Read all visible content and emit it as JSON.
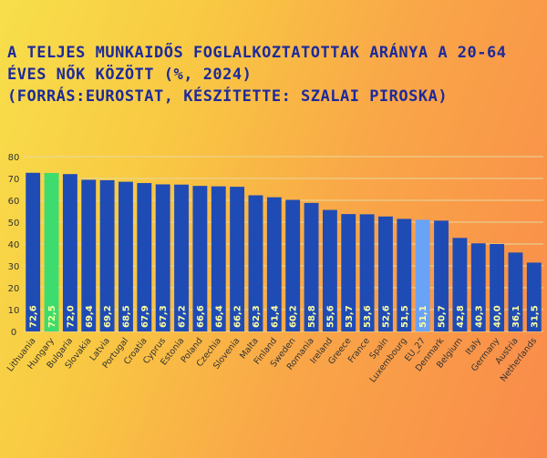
{
  "title_lines": [
    "A teljes munkaidős foglalkoztatottak aránya a 20-64",
    "éves nők között (%, 2024)",
    "(Forrás:Eurostat, készítette: Szalai Piroska)"
  ],
  "colors": {
    "bar": "#1f4bb5",
    "highlight": "#3ddc6e",
    "eu": "#6aa2f5",
    "label": "#ffffa0",
    "grid": "#e8d9a0",
    "axis_text": "#333333"
  },
  "chart_data": {
    "type": "bar",
    "title": "A teljes munkaidős foglalkoztatottak aránya a 20-64 éves nők között (%, 2024)",
    "categories": [
      "Lithuania",
      "Hungary",
      "Bulgaria",
      "Slovakia",
      "Latvia",
      "Portugal",
      "Croatia",
      "Cyprus",
      "Estonia",
      "Poland",
      "Czechia",
      "Slovenia",
      "Malta",
      "Finland",
      "Sweden",
      "Romania",
      "Ireland",
      "Greece",
      "France",
      "Spain",
      "Luxembourg",
      "EU_27",
      "Denmark",
      "Belgium",
      "Italy",
      "Germany",
      "Austria",
      "Netherlands"
    ],
    "values": [
      72.6,
      72.5,
      72.0,
      69.4,
      69.2,
      68.5,
      67.9,
      67.3,
      67.2,
      66.6,
      66.4,
      66.2,
      62.3,
      61.4,
      60.2,
      58.8,
      55.6,
      53.7,
      53.6,
      52.6,
      51.5,
      51.1,
      50.7,
      42.8,
      40.3,
      40.0,
      36.1,
      31.5
    ],
    "value_labels": [
      "72,6",
      "72,5",
      "72,0",
      "69,4",
      "69,2",
      "68,5",
      "67,9",
      "67,3",
      "67,2",
      "66,6",
      "66,4",
      "66,2",
      "62,3",
      "61,4",
      "60,2",
      "58,8",
      "55,6",
      "53,7",
      "53,6",
      "52,6",
      "51,5",
      "51,1",
      "50,7",
      "42,8",
      "40,3",
      "40,0",
      "36,1",
      "31,5"
    ],
    "highlight": "Hungary",
    "reference": "EU_27",
    "ylim": [
      0,
      80
    ],
    "yticks": [
      0,
      10,
      20,
      30,
      40,
      50,
      60,
      70,
      80
    ],
    "grid": true,
    "xlabel": "",
    "ylabel": ""
  }
}
